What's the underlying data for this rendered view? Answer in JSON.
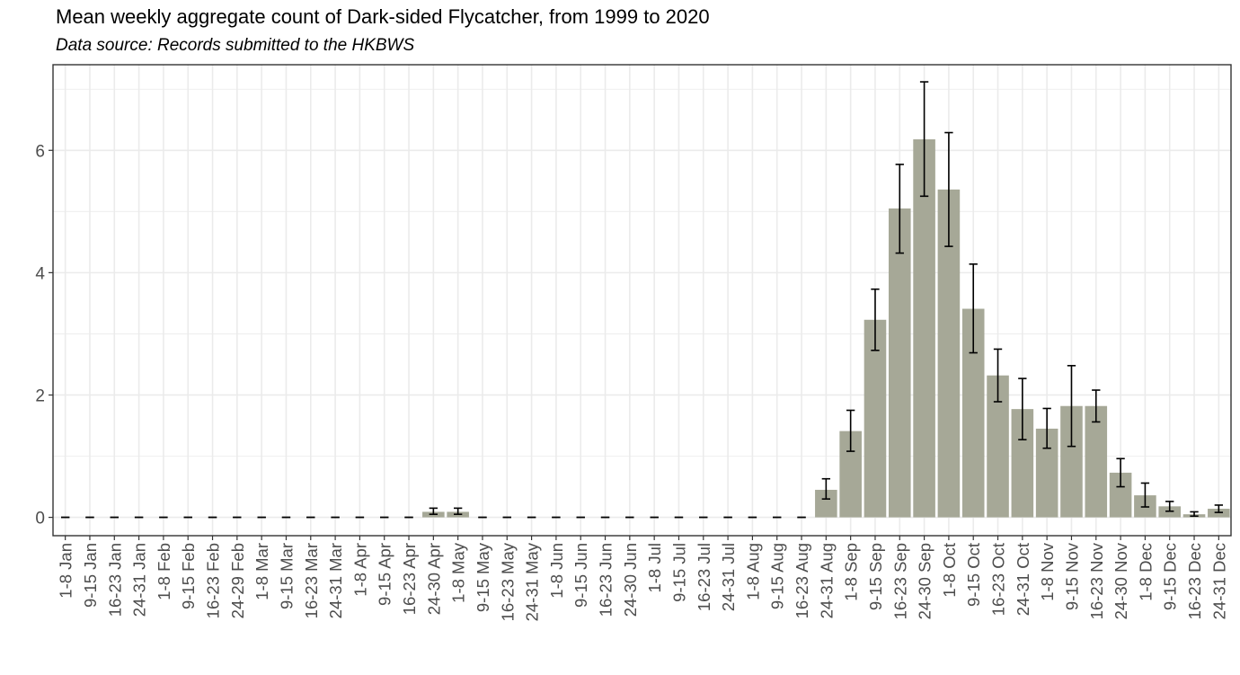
{
  "title": "Mean weekly aggregate count of Dark-sided Flycatcher, from 1999 to 2020",
  "subtitle": "Data source: Records submitted to the HKBWS",
  "colors": {
    "bar": "#a6a897",
    "grid": "#ebebeb",
    "frame": "#333333",
    "text": "#4d4d4d"
  },
  "chart_data": {
    "type": "bar",
    "title": "Mean weekly aggregate count of Dark-sided Flycatcher, from 1999 to 2020",
    "subtitle": "Data source: Records submitted to the HKBWS",
    "xlabel": "",
    "ylabel": "",
    "ylim": [
      -0.3,
      7.4
    ],
    "yticks": [
      0,
      2,
      4,
      6
    ],
    "grid": true,
    "error_bars": true,
    "categories": [
      "1-8 Jan",
      "9-15 Jan",
      "16-23 Jan",
      "24-31 Jan",
      "1-8 Feb",
      "9-15 Feb",
      "16-23 Feb",
      "24-29 Feb",
      "1-8 Mar",
      "9-15 Mar",
      "16-23 Mar",
      "24-31 Mar",
      "1-8 Apr",
      "9-15 Apr",
      "16-23 Apr",
      "24-30 Apr",
      "1-8 May",
      "9-15 May",
      "16-23 May",
      "24-31 May",
      "1-8 Jun",
      "9-15 Jun",
      "16-23 Jun",
      "24-30 Jun",
      "1-8 Jul",
      "9-15 Jul",
      "16-23 Jul",
      "24-31 Jul",
      "1-8 Aug",
      "9-15 Aug",
      "16-23 Aug",
      "24-31 Aug",
      "1-8 Sep",
      "9-15 Sep",
      "16-23 Sep",
      "24-30 Sep",
      "1-8 Oct",
      "9-15 Oct",
      "16-23 Oct",
      "24-31 Oct",
      "1-8 Nov",
      "9-15 Nov",
      "16-23 Nov",
      "24-30 Nov",
      "1-8 Dec",
      "9-15 Dec",
      "16-23 Dec",
      "24-31 Dec"
    ],
    "values": [
      0,
      0,
      0,
      0,
      0,
      0,
      0,
      0,
      0,
      0,
      0,
      0,
      0,
      0,
      0,
      0.09,
      0.09,
      0,
      0,
      0,
      0,
      0,
      0,
      0,
      0,
      0,
      0,
      0,
      0,
      0,
      0,
      0.45,
      1.41,
      3.23,
      5.05,
      6.18,
      5.36,
      3.41,
      2.32,
      1.77,
      1.45,
      1.82,
      1.82,
      0.73,
      0.36,
      0.18,
      0.05,
      0.14
    ],
    "error_low": [
      0,
      0,
      0,
      0,
      0,
      0,
      0,
      0,
      0,
      0,
      0,
      0,
      0,
      0,
      0,
      0.05,
      0.05,
      0,
      0,
      0,
      0,
      0,
      0,
      0,
      0,
      0,
      0,
      0,
      0,
      0,
      0,
      0.3,
      1.08,
      2.73,
      4.32,
      5.25,
      4.43,
      2.69,
      1.89,
      1.27,
      1.13,
      1.16,
      1.56,
      0.5,
      0.17,
      0.1,
      0.02,
      0.08
    ],
    "error_high": [
      0,
      0,
      0,
      0,
      0,
      0,
      0,
      0,
      0,
      0,
      0,
      0,
      0,
      0,
      0,
      0.15,
      0.15,
      0,
      0,
      0,
      0,
      0,
      0,
      0,
      0,
      0,
      0,
      0,
      0,
      0,
      0,
      0.63,
      1.75,
      3.73,
      5.77,
      7.12,
      6.29,
      4.14,
      2.75,
      2.27,
      1.78,
      2.48,
      2.08,
      0.96,
      0.56,
      0.26,
      0.09,
      0.2
    ]
  }
}
